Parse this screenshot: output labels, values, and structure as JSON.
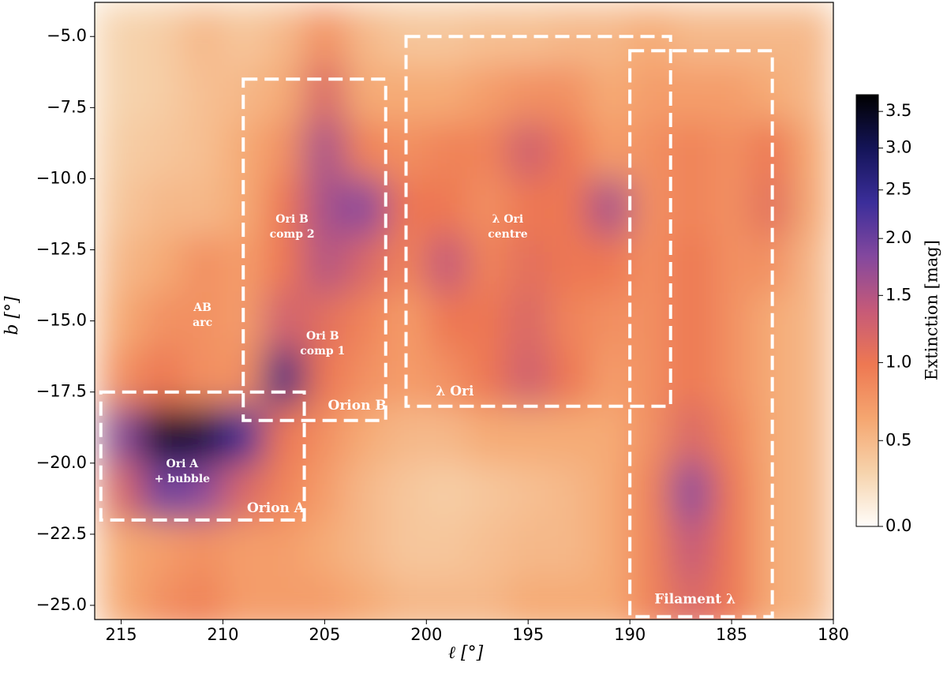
{
  "chart_data": {
    "type": "heatmap",
    "xlabel": "ℓ [°]",
    "ylabel": "b [°]",
    "colorbar_label": "Extinction [mag]",
    "xlim": [
      216.3,
      180
    ],
    "ylim": [
      -25.5,
      -3.8
    ],
    "xticks": [
      215,
      210,
      205,
      200,
      195,
      190,
      185,
      180
    ],
    "yticks": [
      {
        "value": -5,
        "label": "−5.0"
      },
      {
        "value": -7.5,
        "label": "−7.5"
      },
      {
        "value": -10,
        "label": "−10.0"
      },
      {
        "value": -12.5,
        "label": "−12.5"
      },
      {
        "value": -15,
        "label": "−15.0"
      },
      {
        "value": -17.5,
        "label": "−17.5"
      },
      {
        "value": -20,
        "label": "−20.0"
      },
      {
        "value": -22.5,
        "label": "−22.5"
      },
      {
        "value": -25,
        "label": "−25.0"
      }
    ],
    "clim": [
      0,
      3.75
    ],
    "color_scale": "asinh",
    "color_scale_width": 1.5,
    "colorbar_ticks": [
      {
        "value": 0,
        "label": "0.0"
      },
      0.5,
      {
        "value": 1,
        "label": "1.0"
      },
      1.5,
      {
        "value": 2,
        "label": "2.0"
      },
      2.5,
      {
        "value": 3,
        "label": "3.0"
      },
      3.5
    ],
    "colormap": [
      "#fffdfa",
      "#f6d3ac",
      "#f5a670",
      "#ee7852",
      "#c65a78",
      "#84489e",
      "#3b2e9a",
      "#141458",
      "#000000"
    ],
    "x": [
      215,
      213,
      211,
      209,
      207,
      205,
      203,
      201,
      199,
      197,
      195,
      193,
      191,
      189,
      187,
      185,
      183,
      181
    ],
    "y": [
      -5,
      -7,
      -9,
      -11,
      -13,
      -15,
      -17,
      -19,
      -21,
      -23,
      -25
    ],
    "z": [
      [
        0.3,
        0.35,
        0.5,
        0.4,
        0.5,
        0.8,
        0.5,
        0.4,
        0.4,
        0.45,
        0.45,
        0.5,
        0.5,
        0.6,
        0.5,
        0.5,
        0.5,
        0.5
      ],
      [
        0.3,
        0.35,
        0.45,
        0.5,
        0.6,
        1.2,
        0.6,
        0.6,
        0.6,
        0.7,
        0.8,
        0.8,
        0.6,
        0.7,
        0.7,
        0.7,
        0.6,
        0.5
      ],
      [
        0.35,
        0.4,
        0.45,
        0.6,
        0.8,
        1.6,
        0.9,
        0.8,
        0.9,
        0.9,
        1.3,
        1.0,
        0.7,
        0.8,
        0.9,
        0.8,
        1.0,
        0.6
      ],
      [
        0.4,
        0.5,
        0.5,
        0.6,
        1.0,
        1.6,
        1.8,
        1.0,
        1.0,
        0.8,
        1.0,
        1.0,
        1.6,
        0.8,
        0.9,
        0.8,
        1.1,
        0.6
      ],
      [
        0.5,
        0.6,
        0.8,
        0.7,
        1.0,
        1.5,
        1.2,
        0.9,
        1.4,
        0.9,
        1.1,
        1.0,
        1.0,
        0.8,
        1.0,
        0.8,
        0.8,
        0.5
      ],
      [
        0.6,
        0.8,
        0.8,
        0.7,
        1.3,
        1.1,
        0.9,
        0.7,
        1.0,
        1.0,
        1.2,
        0.9,
        0.8,
        0.8,
        1.0,
        0.8,
        0.6,
        0.5
      ],
      [
        0.8,
        1.0,
        0.8,
        0.8,
        2.6,
        1.0,
        0.8,
        0.7,
        0.8,
        1.0,
        1.3,
        1.0,
        0.7,
        0.8,
        1.0,
        0.8,
        0.6,
        0.5
      ],
      [
        1.8,
        3.4,
        3.2,
        2.4,
        1.0,
        0.8,
        0.6,
        0.5,
        0.5,
        0.6,
        0.6,
        0.6,
        0.6,
        0.8,
        1.2,
        0.9,
        0.6,
        0.5
      ],
      [
        1.2,
        2.0,
        1.8,
        1.2,
        0.9,
        0.7,
        0.5,
        0.4,
        0.35,
        0.4,
        0.45,
        0.5,
        0.6,
        0.9,
        1.8,
        1.0,
        0.6,
        0.5
      ],
      [
        0.6,
        0.7,
        0.8,
        0.7,
        0.7,
        0.6,
        0.5,
        0.4,
        0.4,
        0.45,
        0.5,
        0.5,
        0.6,
        0.9,
        1.4,
        1.0,
        0.6,
        0.5
      ],
      [
        0.6,
        0.8,
        0.9,
        0.7,
        0.7,
        0.7,
        0.6,
        0.5,
        0.5,
        0.5,
        0.6,
        0.6,
        0.6,
        0.9,
        1.2,
        1.0,
        0.6,
        0.5
      ]
    ],
    "regions": [
      {
        "label": "Orion A",
        "x": [
          216,
          206
        ],
        "y": [
          -17.5,
          -22
        ],
        "label_x": 207.4,
        "label_y": -21.6
      },
      {
        "label": "Orion B",
        "x": [
          209,
          202
        ],
        "y": [
          -6.5,
          -18.5
        ],
        "label_x": 203.4,
        "label_y": -18.0
      },
      {
        "label": "λ Ori",
        "x": [
          201,
          188
        ],
        "y": [
          -5,
          -18
        ],
        "label_x": 198.6,
        "label_y": -17.5
      },
      {
        "label": "Filament λ",
        "x": [
          190,
          183
        ],
        "y": [
          -5.5,
          -25.4
        ],
        "label_x": 186.8,
        "label_y": -24.8
      }
    ],
    "annotations": [
      {
        "lines": [
          "Ori B",
          "comp 2"
        ],
        "x": 206.6,
        "y": -11.7
      },
      {
        "lines": [
          "AB",
          "arc"
        ],
        "x": 211.0,
        "y": -14.8
      },
      {
        "lines": [
          "Ori B",
          "comp 1"
        ],
        "x": 205.1,
        "y": -15.8
      },
      {
        "lines": [
          "λ Ori",
          "centre"
        ],
        "x": 196.0,
        "y": -11.7
      },
      {
        "lines": [
          "Ori A",
          "+ bubble"
        ],
        "x": 212.0,
        "y": -20.3
      }
    ]
  }
}
